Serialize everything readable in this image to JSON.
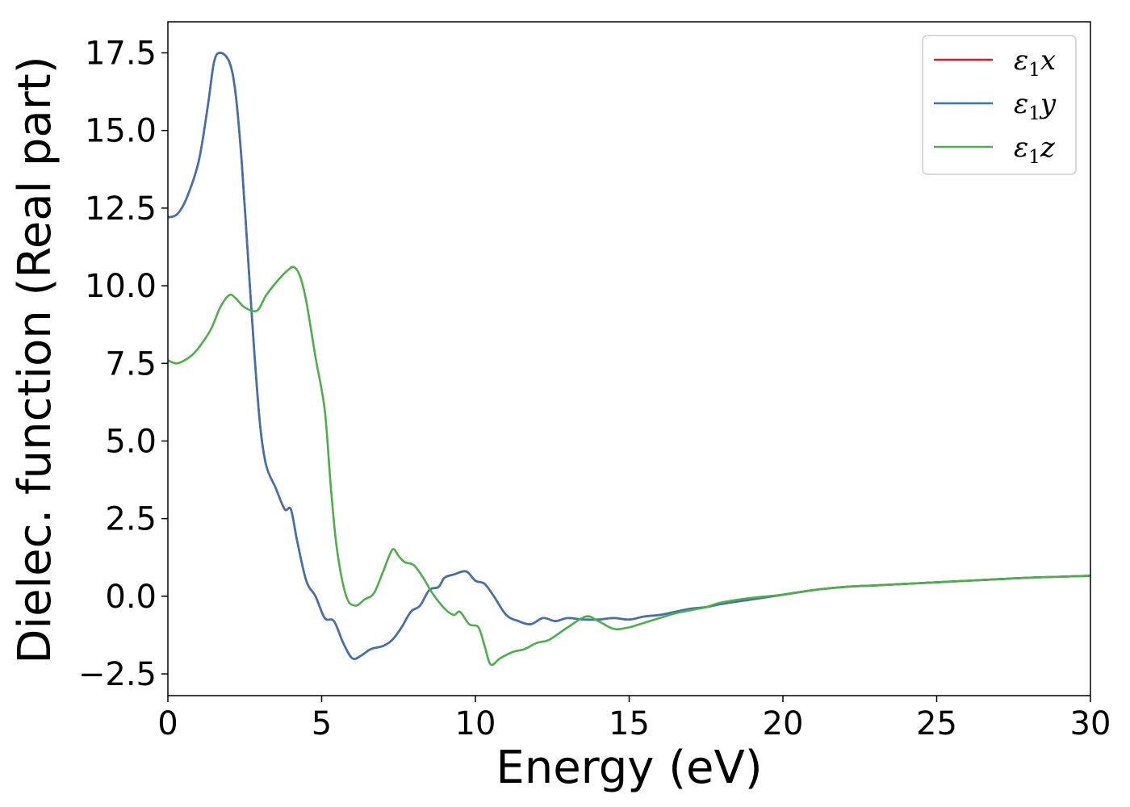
{
  "chart_data": {
    "type": "line",
    "xlabel": "Energy (eV)",
    "ylabel": "Dielec. function (Real part)",
    "xlim": [
      0,
      30
    ],
    "ylim": [
      -3.2,
      18.5
    ],
    "xticks": [
      0,
      5,
      10,
      15,
      20,
      25,
      30
    ],
    "xtick_labels": [
      "0",
      "5",
      "10",
      "15",
      "20",
      "25",
      "30"
    ],
    "yticks": [
      -2.5,
      0.0,
      2.5,
      5.0,
      7.5,
      10.0,
      12.5,
      15.0,
      17.5
    ],
    "ytick_labels": [
      "−2.5",
      "0.0",
      "2.5",
      "5.0",
      "7.5",
      "10.0",
      "12.5",
      "15.0",
      "17.5"
    ],
    "grid": false,
    "legend_position": "top-right",
    "series": [
      {
        "name": "ε",
        "sub": "1",
        "suffix": "x",
        "color": "#e41a1c",
        "points": [
          [
            0,
            12.2
          ],
          [
            0.3,
            12.3
          ],
          [
            0.6,
            12.8
          ],
          [
            1.0,
            14.0
          ],
          [
            1.3,
            15.8
          ],
          [
            1.5,
            17.2
          ],
          [
            1.7,
            17.5
          ],
          [
            2.0,
            17.2
          ],
          [
            2.2,
            16.2
          ],
          [
            2.4,
            14.0
          ],
          [
            2.6,
            11.0
          ],
          [
            2.8,
            8.0
          ],
          [
            3.0,
            5.5
          ],
          [
            3.2,
            4.2
          ],
          [
            3.5,
            3.5
          ],
          [
            3.8,
            2.8
          ],
          [
            4.0,
            2.8
          ],
          [
            4.2,
            1.8
          ],
          [
            4.5,
            0.5
          ],
          [
            4.8,
            0.0
          ],
          [
            5.1,
            -0.7
          ],
          [
            5.4,
            -0.8
          ],
          [
            5.7,
            -1.5
          ],
          [
            6.0,
            -2.0
          ],
          [
            6.3,
            -1.9
          ],
          [
            6.6,
            -1.7
          ],
          [
            7.0,
            -1.6
          ],
          [
            7.3,
            -1.4
          ],
          [
            7.6,
            -1.0
          ],
          [
            7.9,
            -0.5
          ],
          [
            8.2,
            -0.3
          ],
          [
            8.5,
            0.2
          ],
          [
            8.8,
            0.3
          ],
          [
            9.0,
            0.6
          ],
          [
            9.3,
            0.7
          ],
          [
            9.7,
            0.8
          ],
          [
            10.0,
            0.5
          ],
          [
            10.3,
            0.4
          ],
          [
            10.6,
            0.0
          ],
          [
            11.0,
            -0.6
          ],
          [
            11.4,
            -0.8
          ],
          [
            11.8,
            -0.9
          ],
          [
            12.2,
            -0.7
          ],
          [
            12.6,
            -0.8
          ],
          [
            13.0,
            -0.7
          ],
          [
            13.5,
            -0.75
          ],
          [
            14.0,
            -0.75
          ],
          [
            14.5,
            -0.7
          ],
          [
            15.0,
            -0.75
          ],
          [
            15.5,
            -0.65
          ],
          [
            16.0,
            -0.6
          ],
          [
            16.5,
            -0.5
          ],
          [
            17.0,
            -0.4
          ],
          [
            17.5,
            -0.35
          ],
          [
            18.0,
            -0.25
          ],
          [
            19.0,
            -0.1
          ],
          [
            20.0,
            0.05
          ],
          [
            21.0,
            0.2
          ],
          [
            22.0,
            0.3
          ],
          [
            23.0,
            0.35
          ],
          [
            24.0,
            0.4
          ],
          [
            25.0,
            0.45
          ],
          [
            26.0,
            0.5
          ],
          [
            27.0,
            0.55
          ],
          [
            28.0,
            0.6
          ],
          [
            29.0,
            0.63
          ],
          [
            30.0,
            0.66
          ]
        ]
      },
      {
        "name": "ε",
        "sub": "1",
        "suffix": "y",
        "color": "#3d72b0",
        "points": [
          [
            0,
            12.2
          ],
          [
            0.3,
            12.3
          ],
          [
            0.6,
            12.8
          ],
          [
            1.0,
            14.0
          ],
          [
            1.3,
            15.8
          ],
          [
            1.5,
            17.2
          ],
          [
            1.7,
            17.5
          ],
          [
            2.0,
            17.2
          ],
          [
            2.2,
            16.2
          ],
          [
            2.4,
            14.0
          ],
          [
            2.6,
            11.0
          ],
          [
            2.8,
            8.0
          ],
          [
            3.0,
            5.5
          ],
          [
            3.2,
            4.2
          ],
          [
            3.5,
            3.5
          ],
          [
            3.8,
            2.8
          ],
          [
            4.0,
            2.8
          ],
          [
            4.2,
            1.8
          ],
          [
            4.5,
            0.5
          ],
          [
            4.8,
            0.0
          ],
          [
            5.1,
            -0.7
          ],
          [
            5.4,
            -0.8
          ],
          [
            5.7,
            -1.5
          ],
          [
            6.0,
            -2.0
          ],
          [
            6.3,
            -1.9
          ],
          [
            6.6,
            -1.7
          ],
          [
            7.0,
            -1.6
          ],
          [
            7.3,
            -1.4
          ],
          [
            7.6,
            -1.0
          ],
          [
            7.9,
            -0.5
          ],
          [
            8.2,
            -0.3
          ],
          [
            8.5,
            0.2
          ],
          [
            8.8,
            0.3
          ],
          [
            9.0,
            0.6
          ],
          [
            9.3,
            0.7
          ],
          [
            9.7,
            0.8
          ],
          [
            10.0,
            0.5
          ],
          [
            10.3,
            0.4
          ],
          [
            10.6,
            0.0
          ],
          [
            11.0,
            -0.6
          ],
          [
            11.4,
            -0.8
          ],
          [
            11.8,
            -0.9
          ],
          [
            12.2,
            -0.7
          ],
          [
            12.6,
            -0.8
          ],
          [
            13.0,
            -0.7
          ],
          [
            13.5,
            -0.75
          ],
          [
            14.0,
            -0.75
          ],
          [
            14.5,
            -0.7
          ],
          [
            15.0,
            -0.75
          ],
          [
            15.5,
            -0.65
          ],
          [
            16.0,
            -0.6
          ],
          [
            16.5,
            -0.5
          ],
          [
            17.0,
            -0.4
          ],
          [
            17.5,
            -0.35
          ],
          [
            18.0,
            -0.25
          ],
          [
            19.0,
            -0.1
          ],
          [
            20.0,
            0.05
          ],
          [
            21.0,
            0.2
          ],
          [
            22.0,
            0.3
          ],
          [
            23.0,
            0.35
          ],
          [
            24.0,
            0.4
          ],
          [
            25.0,
            0.45
          ],
          [
            26.0,
            0.5
          ],
          [
            27.0,
            0.55
          ],
          [
            28.0,
            0.6
          ],
          [
            29.0,
            0.63
          ],
          [
            30.0,
            0.66
          ]
        ]
      },
      {
        "name": "ε",
        "sub": "1",
        "suffix": "z",
        "color": "#4daf4a",
        "points": [
          [
            0,
            7.6
          ],
          [
            0.3,
            7.5
          ],
          [
            0.7,
            7.7
          ],
          [
            1.0,
            8.0
          ],
          [
            1.4,
            8.6
          ],
          [
            1.7,
            9.3
          ],
          [
            2.0,
            9.7
          ],
          [
            2.2,
            9.6
          ],
          [
            2.5,
            9.3
          ],
          [
            2.9,
            9.2
          ],
          [
            3.2,
            9.7
          ],
          [
            3.6,
            10.2
          ],
          [
            3.9,
            10.5
          ],
          [
            4.1,
            10.6
          ],
          [
            4.3,
            10.3
          ],
          [
            4.5,
            9.5
          ],
          [
            4.8,
            7.7
          ],
          [
            5.1,
            6.0
          ],
          [
            5.3,
            3.5
          ],
          [
            5.5,
            1.5
          ],
          [
            5.8,
            0.0
          ],
          [
            6.1,
            -0.3
          ],
          [
            6.4,
            -0.1
          ],
          [
            6.7,
            0.1
          ],
          [
            7.0,
            0.8
          ],
          [
            7.3,
            1.5
          ],
          [
            7.5,
            1.3
          ],
          [
            7.7,
            1.1
          ],
          [
            8.0,
            1.0
          ],
          [
            8.3,
            0.6
          ],
          [
            8.6,
            0.1
          ],
          [
            9.0,
            -0.4
          ],
          [
            9.3,
            -0.6
          ],
          [
            9.5,
            -0.5
          ],
          [
            9.8,
            -0.9
          ],
          [
            10.1,
            -1.0
          ],
          [
            10.3,
            -1.6
          ],
          [
            10.5,
            -2.2
          ],
          [
            10.8,
            -2.0
          ],
          [
            11.2,
            -1.8
          ],
          [
            11.6,
            -1.7
          ],
          [
            12.0,
            -1.5
          ],
          [
            12.4,
            -1.4
          ],
          [
            13.0,
            -1.0
          ],
          [
            13.6,
            -0.65
          ],
          [
            14.0,
            -0.8
          ],
          [
            14.5,
            -1.05
          ],
          [
            15.0,
            -1.0
          ],
          [
            15.5,
            -0.85
          ],
          [
            16.0,
            -0.7
          ],
          [
            16.5,
            -0.55
          ],
          [
            17.0,
            -0.45
          ],
          [
            17.5,
            -0.35
          ],
          [
            18.0,
            -0.2
          ],
          [
            19.0,
            -0.05
          ],
          [
            20.0,
            0.05
          ],
          [
            21.0,
            0.2
          ],
          [
            22.0,
            0.3
          ],
          [
            23.0,
            0.35
          ],
          [
            24.0,
            0.4
          ],
          [
            25.0,
            0.45
          ],
          [
            26.0,
            0.5
          ],
          [
            27.0,
            0.55
          ],
          [
            28.0,
            0.6
          ],
          [
            29.0,
            0.63
          ],
          [
            30.0,
            0.66
          ]
        ]
      }
    ]
  }
}
